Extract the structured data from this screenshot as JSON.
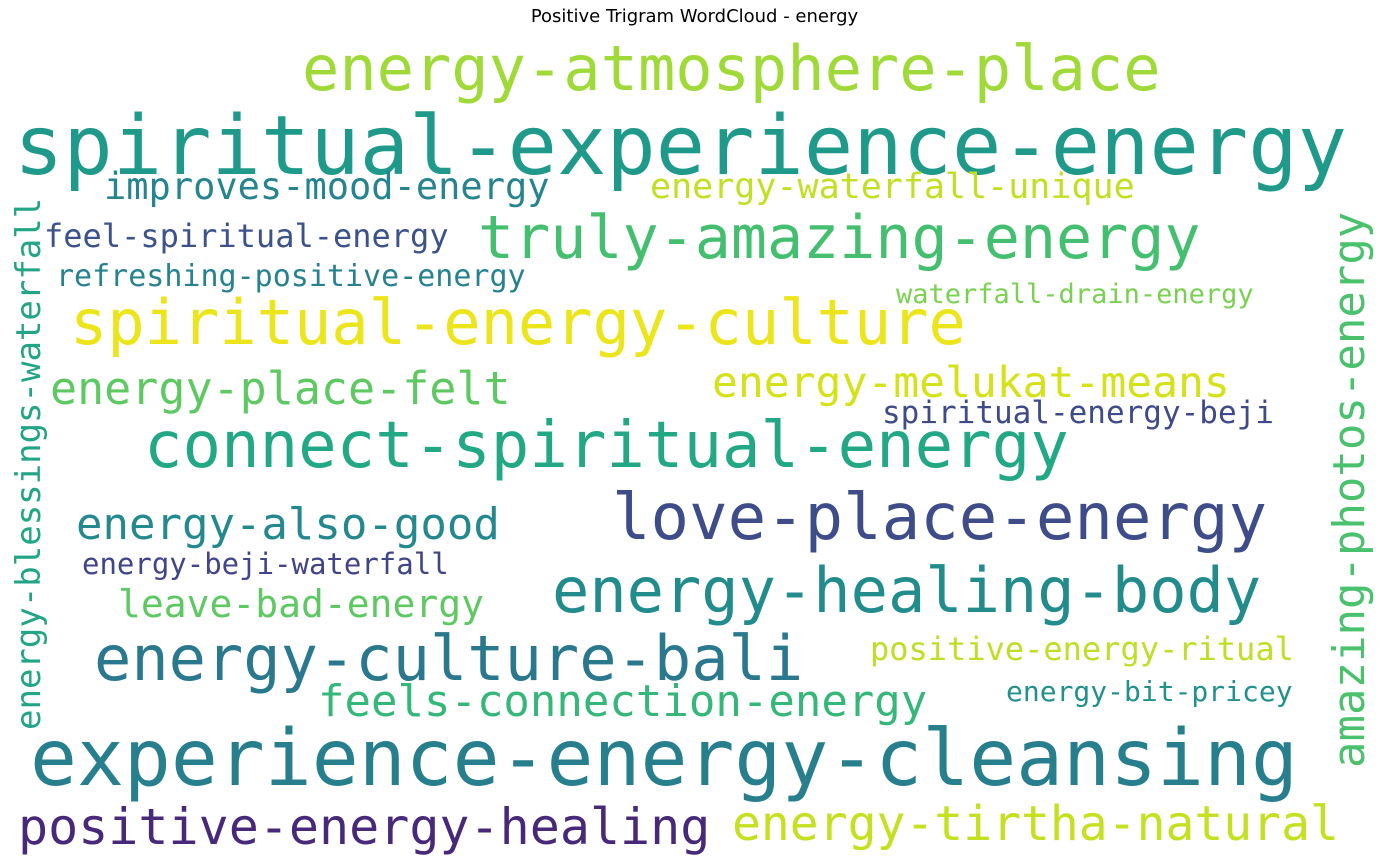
{
  "title": "Positive Trigram WordCloud - energy",
  "words": [
    {
      "text": "energy-atmosphere-place",
      "color": "#a0da39"
    },
    {
      "text": "spiritual-experience-energy",
      "color": "#1f9a8a"
    },
    {
      "text": "improves-mood-energy",
      "color": "#25848e"
    },
    {
      "text": "energy-waterfall-unique",
      "color": "#c2df23"
    },
    {
      "text": "feel-spiritual-energy",
      "color": "#3b528b"
    },
    {
      "text": "truly-amazing-energy",
      "color": "#44bf70"
    },
    {
      "text": "refreshing-positive-energy",
      "color": "#26828e"
    },
    {
      "text": "waterfall-drain-energy",
      "color": "#7ad151"
    },
    {
      "text": "spiritual-energy-culture",
      "color": "#ece51b"
    },
    {
      "text": "energy-place-felt",
      "color": "#5ec962"
    },
    {
      "text": "energy-melukat-means",
      "color": "#d5e21a"
    },
    {
      "text": "spiritual-energy-beji",
      "color": "#3e4a89"
    },
    {
      "text": "connect-spiritual-energy",
      "color": "#22a884"
    },
    {
      "text": "energy-also-good",
      "color": "#23898e"
    },
    {
      "text": "love-place-energy",
      "color": "#3e4c8a"
    },
    {
      "text": "energy-beji-waterfall",
      "color": "#414487"
    },
    {
      "text": "energy-healing-body",
      "color": "#228c8d"
    },
    {
      "text": "leave-bad-energy",
      "color": "#5ec962"
    },
    {
      "text": "energy-culture-bali",
      "color": "#2a788e"
    },
    {
      "text": "positive-energy-ritual",
      "color": "#bddf26"
    },
    {
      "text": "feels-connection-energy",
      "color": "#35b779"
    },
    {
      "text": "energy-bit-pricey",
      "color": "#21918c"
    },
    {
      "text": "experience-energy-cleansing",
      "color": "#277f8e"
    },
    {
      "text": "positive-energy-healing",
      "color": "#482878"
    },
    {
      "text": "energy-tirtha-natural",
      "color": "#c5e021"
    },
    {
      "text": "energy-blessings-waterfall",
      "color": "#21a585"
    },
    {
      "text": "amazing-photos-energy",
      "color": "#4ac16d"
    }
  ]
}
